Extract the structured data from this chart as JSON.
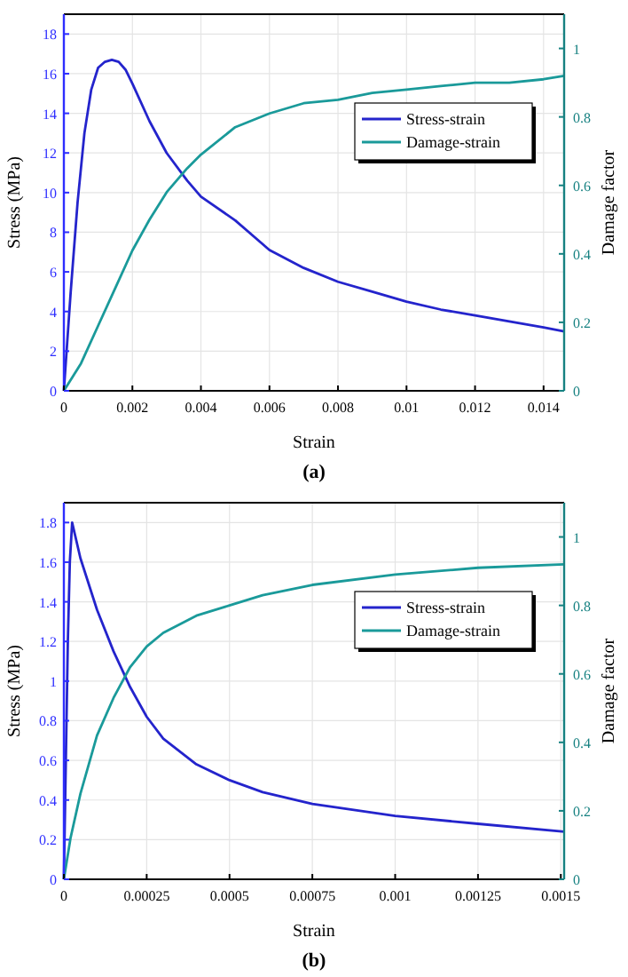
{
  "chart_data": [
    {
      "type": "line",
      "title": "(a)",
      "xlabel": "Strain",
      "ylabel": "Stress (MPa)",
      "y2label": "Damage factor",
      "xlim": [
        0,
        0.0146
      ],
      "xticks": [
        0,
        0.002,
        0.004,
        0.006,
        0.008,
        0.01,
        0.012,
        0.014
      ],
      "ylim": [
        0,
        19
      ],
      "yticks": [
        0,
        2,
        4,
        6,
        8,
        10,
        12,
        14,
        16,
        18
      ],
      "y2lim": [
        0,
        1.1
      ],
      "y2ticks": [
        0,
        0.2,
        0.4,
        0.6,
        0.8,
        1
      ],
      "grid": true,
      "legend": "right",
      "line_style": "solid",
      "series": [
        {
          "name": "Stress-strain",
          "color": "#2424cc",
          "x": [
            0,
            0.0002,
            0.0004,
            0.0006,
            0.0008,
            0.001,
            0.0012,
            0.0014,
            0.0016,
            0.0018,
            0.002,
            0.0025,
            0.003,
            0.0036,
            0.004,
            0.005,
            0.006,
            0.007,
            0.008,
            0.009,
            0.01,
            0.011,
            0.012,
            0.013,
            0.014,
            0.0146
          ],
          "values": [
            0,
            5,
            9.5,
            13,
            15.2,
            16.3,
            16.6,
            16.7,
            16.6,
            16.2,
            15.5,
            13.6,
            12,
            10.6,
            9.8,
            8.6,
            7.1,
            6.2,
            5.5,
            5,
            4.5,
            4.1,
            3.8,
            3.5,
            3.2,
            3.0
          ]
        },
        {
          "name": "Damage-strain",
          "color": "#1a9a9a",
          "axis": "y2",
          "x": [
            0,
            0.0005,
            0.001,
            0.0015,
            0.002,
            0.0025,
            0.003,
            0.0036,
            0.004,
            0.005,
            0.006,
            0.007,
            0.008,
            0.009,
            0.01,
            0.011,
            0.012,
            0.013,
            0.014,
            0.0146
          ],
          "values": [
            0,
            0.08,
            0.19,
            0.3,
            0.41,
            0.5,
            0.58,
            0.65,
            0.69,
            0.77,
            0.81,
            0.84,
            0.85,
            0.87,
            0.88,
            0.89,
            0.9,
            0.9,
            0.91,
            0.92
          ]
        }
      ]
    },
    {
      "type": "line",
      "title": "(b)",
      "xlabel": "Strain",
      "ylabel": "Stress (MPa)",
      "y2label": "Damage factor",
      "xlim": [
        0,
        0.00151
      ],
      "xticks": [
        0,
        0.00025,
        0.0005,
        0.00075,
        0.001,
        0.00125,
        0.0015
      ],
      "ylim": [
        0,
        1.9
      ],
      "yticks": [
        0,
        0.2,
        0.4,
        0.6,
        0.8,
        1,
        1.2,
        1.4,
        1.6,
        1.8
      ],
      "y2lim": [
        0,
        1.1
      ],
      "y2ticks": [
        0,
        0.2,
        0.4,
        0.6,
        0.8,
        1
      ],
      "grid": true,
      "legend": "right",
      "line_style": "solid",
      "series": [
        {
          "name": "Stress-strain",
          "color": "#2424cc",
          "x": [
            0,
            6e-06,
            1.2e-05,
            1.8e-05,
            2.5e-05,
            5e-05,
            0.0001,
            0.00015,
            0.0002,
            0.00025,
            0.0003,
            0.0004,
            0.0005,
            0.0006,
            0.00075,
            0.001,
            0.00125,
            0.00151
          ],
          "values": [
            0,
            0.6,
            1.2,
            1.6,
            1.8,
            1.62,
            1.36,
            1.15,
            0.97,
            0.82,
            0.71,
            0.58,
            0.5,
            0.44,
            0.38,
            0.32,
            0.28,
            0.24
          ]
        },
        {
          "name": "Damage-strain",
          "color": "#1a9a9a",
          "axis": "y2",
          "x": [
            0,
            2e-05,
            5e-05,
            0.0001,
            0.00015,
            0.0002,
            0.00025,
            0.0003,
            0.0004,
            0.0005,
            0.0006,
            0.00075,
            0.001,
            0.00125,
            0.00151
          ],
          "values": [
            0,
            0.12,
            0.25,
            0.42,
            0.53,
            0.62,
            0.68,
            0.72,
            0.77,
            0.8,
            0.83,
            0.86,
            0.89,
            0.91,
            0.92
          ]
        }
      ]
    }
  ]
}
